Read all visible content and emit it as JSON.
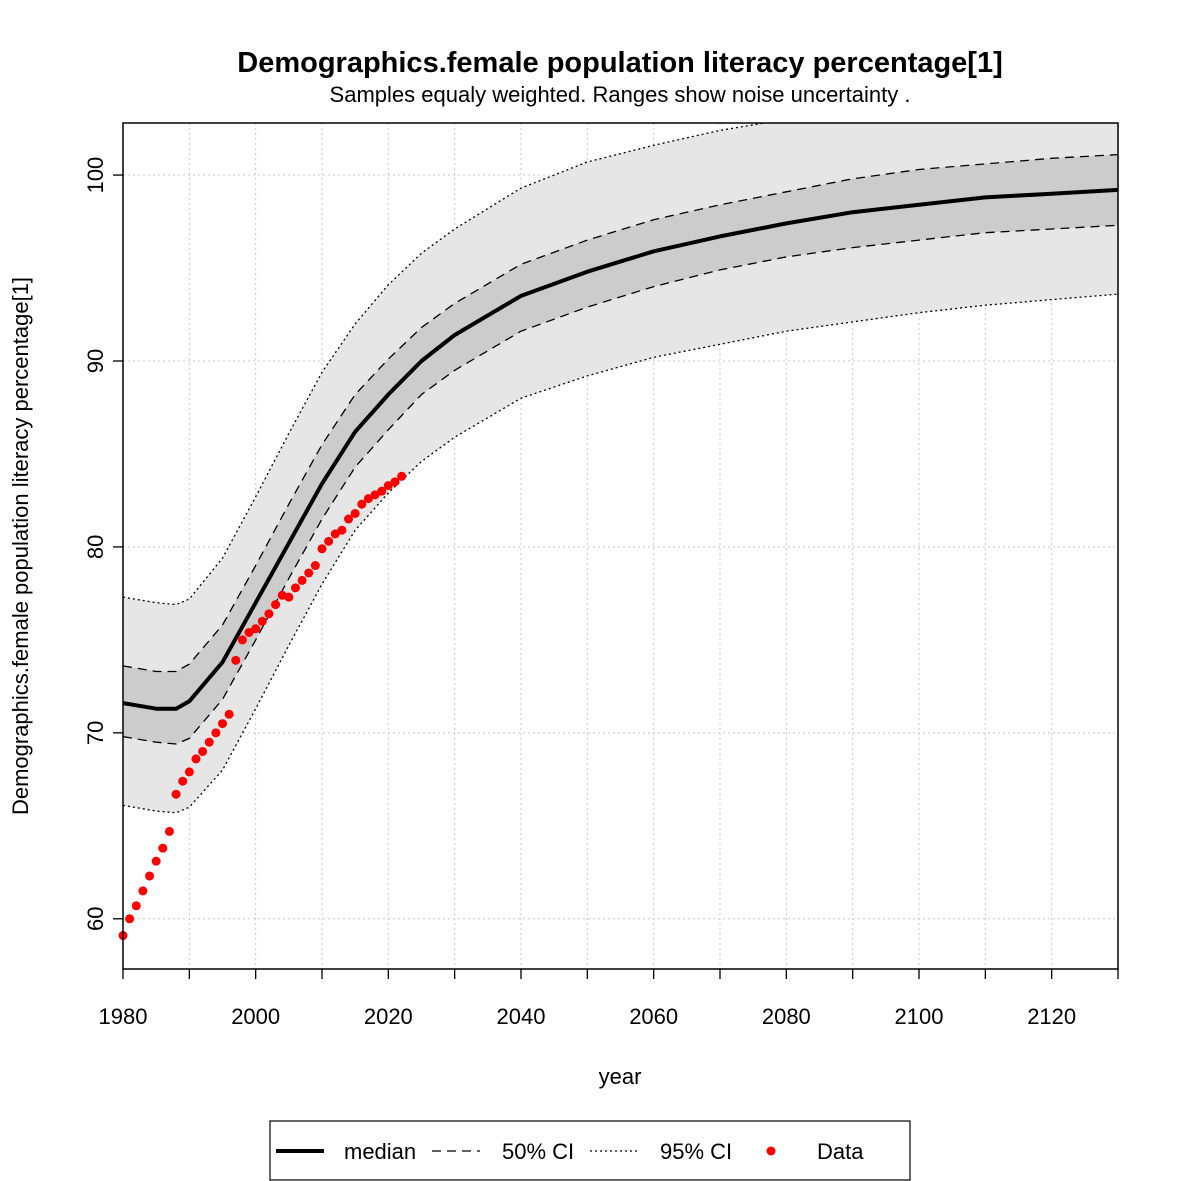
{
  "chart_data": {
    "type": "line",
    "title": "Demographics.female population literacy percentage[1]",
    "subtitle": "Samples equaly weighted. Ranges show  noise uncertainty .",
    "xlabel": "year",
    "ylabel": "Demographics.female population literacy percentage[1]",
    "xlim": [
      1980,
      2130
    ],
    "ylim": [
      57.3,
      102.8
    ],
    "x_ticks": [
      1980,
      2000,
      2020,
      2040,
      2060,
      2080,
      2100,
      2120
    ],
    "y_ticks": [
      60,
      70,
      80,
      90,
      100
    ],
    "grid": true,
    "legend_position": "bottom",
    "legend": [
      {
        "label": "median",
        "style": "solid-thick"
      },
      {
        "label": "50% CI",
        "style": "dashed"
      },
      {
        "label": "95% CI",
        "style": "dotted"
      },
      {
        "label": "Data",
        "style": "red-dot"
      }
    ],
    "colors": {
      "median": "#000000",
      "band95": "#e6e6e6",
      "band50": "#cccccc",
      "data": "#ff0000",
      "grid": "#c8c8c8"
    },
    "series": [
      {
        "name": "median",
        "x": [
          1980,
          1985,
          1988,
          1990,
          1995,
          2000,
          2005,
          2010,
          2015,
          2020,
          2025,
          2030,
          2040,
          2050,
          2060,
          2070,
          2080,
          2090,
          2100,
          2110,
          2120,
          2130
        ],
        "values": [
          71.6,
          71.3,
          71.3,
          71.7,
          73.8,
          77.0,
          80.2,
          83.4,
          86.2,
          88.2,
          90.0,
          91.4,
          93.5,
          94.8,
          95.9,
          96.7,
          97.4,
          98.0,
          98.4,
          98.8,
          99.0,
          99.2
        ]
      },
      {
        "name": "50% CI upper",
        "x": [
          1980,
          1985,
          1988,
          1990,
          1995,
          2000,
          2005,
          2010,
          2015,
          2020,
          2025,
          2030,
          2040,
          2050,
          2060,
          2070,
          2080,
          2090,
          2100,
          2110,
          2120,
          2130
        ],
        "values": [
          73.6,
          73.3,
          73.3,
          73.7,
          75.8,
          79.0,
          82.3,
          85.5,
          88.2,
          90.1,
          91.8,
          93.1,
          95.2,
          96.5,
          97.6,
          98.4,
          99.1,
          99.8,
          100.3,
          100.6,
          100.9,
          101.1
        ]
      },
      {
        "name": "50% CI lower",
        "x": [
          1980,
          1985,
          1988,
          1990,
          1995,
          2000,
          2005,
          2010,
          2015,
          2020,
          2025,
          2030,
          2040,
          2050,
          2060,
          2070,
          2080,
          2090,
          2100,
          2110,
          2120,
          2130
        ],
        "values": [
          69.8,
          69.5,
          69.4,
          69.7,
          71.8,
          75.0,
          78.3,
          81.5,
          84.3,
          86.3,
          88.2,
          89.5,
          91.6,
          92.9,
          94.0,
          94.9,
          95.6,
          96.1,
          96.5,
          96.9,
          97.1,
          97.3
        ]
      },
      {
        "name": "95% CI upper",
        "x": [
          1980,
          1985,
          1988,
          1990,
          1995,
          2000,
          2005,
          2010,
          2015,
          2020,
          2025,
          2030,
          2040,
          2050,
          2060,
          2070,
          2080,
          2090,
          2100,
          2110,
          2120,
          2130
        ],
        "values": [
          77.3,
          77.0,
          76.9,
          77.2,
          79.4,
          82.7,
          86.1,
          89.4,
          92.0,
          94.1,
          95.8,
          97.1,
          99.3,
          100.7,
          101.6,
          102.4,
          103.0,
          103.5,
          103.9,
          104.2,
          104.5,
          104.7
        ]
      },
      {
        "name": "95% CI lower",
        "x": [
          1980,
          1985,
          1988,
          1990,
          1995,
          2000,
          2005,
          2010,
          2015,
          2020,
          2025,
          2030,
          2040,
          2050,
          2060,
          2070,
          2080,
          2090,
          2100,
          2110,
          2120,
          2130
        ],
        "values": [
          66.1,
          65.8,
          65.7,
          66.0,
          68.0,
          71.3,
          74.7,
          78.0,
          80.9,
          82.9,
          84.6,
          85.9,
          88.0,
          89.2,
          90.2,
          90.9,
          91.6,
          92.1,
          92.6,
          93.0,
          93.3,
          93.6
        ]
      },
      {
        "name": "Data",
        "x": [
          1980,
          1981,
          1982,
          1983,
          1984,
          1985,
          1986,
          1987,
          1988,
          1989,
          1990,
          1991,
          1992,
          1993,
          1994,
          1995,
          1996,
          1997,
          1998,
          1999,
          2000,
          2001,
          2002,
          2003,
          2004,
          2005,
          2006,
          2007,
          2008,
          2009,
          2010,
          2011,
          2012,
          2013,
          2014,
          2015,
          2016,
          2017,
          2018,
          2019,
          2020,
          2021,
          2022
        ],
        "values": [
          59.1,
          60.0,
          60.7,
          61.5,
          62.3,
          63.1,
          63.8,
          64.7,
          66.7,
          67.4,
          67.9,
          68.6,
          69.0,
          69.5,
          70.0,
          70.5,
          71.0,
          73.9,
          75.0,
          75.4,
          75.6,
          76.0,
          76.4,
          76.9,
          77.4,
          77.3,
          77.8,
          78.2,
          78.6,
          79.0,
          79.9,
          80.3,
          80.7,
          80.9,
          81.5,
          81.8,
          82.3,
          82.6,
          82.8,
          83.0,
          83.3,
          83.5,
          83.8
        ]
      }
    ]
  }
}
